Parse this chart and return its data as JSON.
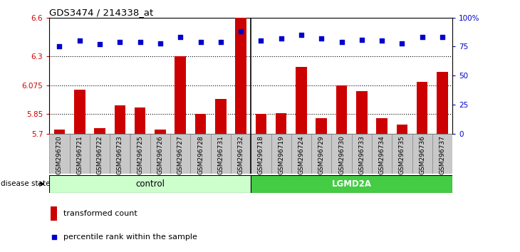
{
  "title": "GDS3474 / 214338_at",
  "samples": [
    "GSM296720",
    "GSM296721",
    "GSM296722",
    "GSM296723",
    "GSM296725",
    "GSM296726",
    "GSM296727",
    "GSM296728",
    "GSM296731",
    "GSM296732",
    "GSM296718",
    "GSM296719",
    "GSM296724",
    "GSM296729",
    "GSM296730",
    "GSM296733",
    "GSM296734",
    "GSM296735",
    "GSM296736",
    "GSM296737"
  ],
  "bar_values": [
    5.73,
    6.04,
    5.74,
    5.92,
    5.9,
    5.73,
    6.3,
    5.85,
    5.97,
    6.6,
    5.85,
    5.86,
    6.22,
    5.82,
    6.075,
    6.03,
    5.82,
    5.77,
    6.1,
    6.18
  ],
  "dot_values": [
    75,
    80,
    77,
    79,
    79,
    78,
    83,
    79,
    79,
    88,
    80,
    82,
    85,
    82,
    79,
    81,
    80,
    78,
    83,
    83
  ],
  "ylim_left": [
    5.7,
    6.6
  ],
  "ylim_right": [
    0,
    100
  ],
  "yticks_left": [
    5.7,
    5.85,
    6.075,
    6.3,
    6.6
  ],
  "ytick_labels_left": [
    "5.7",
    "5.85",
    "6.075",
    "6.3",
    "6.6"
  ],
  "yticks_right": [
    0,
    25,
    50,
    75,
    100
  ],
  "ytick_labels_right": [
    "0",
    "25",
    "50",
    "75",
    "100%"
  ],
  "hlines": [
    5.85,
    6.075,
    6.3
  ],
  "bar_color": "#CC0000",
  "dot_color": "#0000CC",
  "col_bg_color": "#C8C8C8",
  "col_border_color": "#888888",
  "control_color": "#CCFFCC",
  "lgmd_color": "#44CC44",
  "n_control": 10,
  "n_lgmd": 10,
  "legend_bar_label": "transformed count",
  "legend_dot_label": "percentile rank within the sample",
  "disease_label": "disease state",
  "control_label": "control",
  "lgmd_label": "LGMD2A"
}
